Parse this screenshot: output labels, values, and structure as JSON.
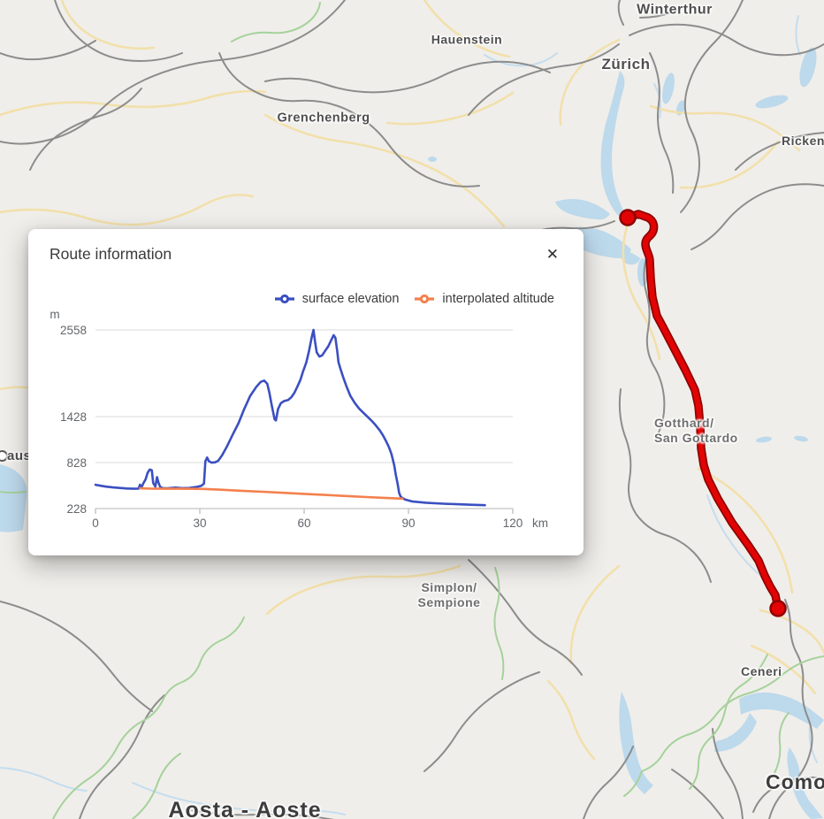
{
  "panel": {
    "title": "Route information",
    "close": "✕"
  },
  "chart_data": {
    "type": "line",
    "title": "Route information",
    "xlabel": "km",
    "ylabel": "m",
    "xlim": [
      0,
      120
    ],
    "ylim": [
      228,
      2558
    ],
    "x_ticks": [
      0,
      30,
      60,
      90,
      120
    ],
    "y_ticks": [
      228,
      828,
      1428,
      2558
    ],
    "grid": "horizontal-only",
    "legend_position": "top-right",
    "series": [
      {
        "name": "surface elevation",
        "color": "#3b4fc1",
        "points": [
          [
            0,
            538
          ],
          [
            1.5,
            526
          ],
          [
            3,
            514
          ],
          [
            5,
            504
          ],
          [
            7,
            497
          ],
          [
            9,
            490
          ],
          [
            11,
            486
          ],
          [
            12.4,
            488
          ],
          [
            12.8,
            540
          ],
          [
            13.2,
            498
          ],
          [
            13.7,
            552
          ],
          [
            14.4,
            607
          ],
          [
            15,
            695
          ],
          [
            15.6,
            737
          ],
          [
            16.2,
            728
          ],
          [
            16.6,
            560
          ],
          [
            17.2,
            514
          ],
          [
            17.7,
            638
          ],
          [
            18.1,
            568
          ],
          [
            18.6,
            508
          ],
          [
            19.5,
            492
          ],
          [
            21,
            495
          ],
          [
            23,
            501
          ],
          [
            25,
            494
          ],
          [
            27,
            497
          ],
          [
            29,
            509
          ],
          [
            30.4,
            524
          ],
          [
            31.2,
            552
          ],
          [
            31.6,
            845
          ],
          [
            32.1,
            893
          ],
          [
            32.6,
            846
          ],
          [
            33.4,
            827
          ],
          [
            34.4,
            831
          ],
          [
            35.3,
            851
          ],
          [
            36.4,
            922
          ],
          [
            37.8,
            1038
          ],
          [
            39.4,
            1188
          ],
          [
            41.1,
            1340
          ],
          [
            42.8,
            1528
          ],
          [
            44.5,
            1697
          ],
          [
            46.2,
            1812
          ],
          [
            47.5,
            1880
          ],
          [
            48.5,
            1897
          ],
          [
            49.4,
            1856
          ],
          [
            50,
            1738
          ],
          [
            50.7,
            1572
          ],
          [
            51.5,
            1392
          ],
          [
            51.9,
            1378
          ],
          [
            52.5,
            1527
          ],
          [
            53.3,
            1602
          ],
          [
            54.2,
            1629
          ],
          [
            55.4,
            1643
          ],
          [
            56.3,
            1679
          ],
          [
            57.2,
            1738
          ],
          [
            58,
            1812
          ],
          [
            58.9,
            1904
          ],
          [
            59.7,
            2017
          ],
          [
            60.6,
            2132
          ],
          [
            61.4,
            2282
          ],
          [
            62.2,
            2468
          ],
          [
            62.7,
            2558
          ],
          [
            63.1,
            2416
          ],
          [
            63.6,
            2266
          ],
          [
            64.4,
            2210
          ],
          [
            65.2,
            2227
          ],
          [
            66,
            2282
          ],
          [
            66.9,
            2340
          ],
          [
            67.7,
            2416
          ],
          [
            68.5,
            2489
          ],
          [
            69,
            2453
          ],
          [
            69.5,
            2283
          ],
          [
            69.9,
            2133
          ],
          [
            70.4,
            2057
          ],
          [
            71.2,
            1943
          ],
          [
            72.1,
            1830
          ],
          [
            73.3,
            1698
          ],
          [
            74.6,
            1603
          ],
          [
            75.9,
            1528
          ],
          [
            77.6,
            1453
          ],
          [
            79.3,
            1378
          ],
          [
            80.5,
            1319
          ],
          [
            81.8,
            1245
          ],
          [
            82.6,
            1188
          ],
          [
            83.5,
            1113
          ],
          [
            84.3,
            1038
          ],
          [
            85.1,
            942
          ],
          [
            85.9,
            792
          ],
          [
            86.4,
            660
          ],
          [
            86.9,
            548
          ],
          [
            87.3,
            435
          ],
          [
            87.8,
            379
          ],
          [
            89,
            347
          ],
          [
            91,
            321
          ],
          [
            95,
            304
          ],
          [
            100,
            291
          ],
          [
            104,
            284
          ],
          [
            108,
            278
          ],
          [
            112,
            272
          ]
        ]
      },
      {
        "name": "interpolated altitude",
        "color": "#f4804d",
        "points": [
          [
            12.8,
            492
          ],
          [
            16,
            488
          ],
          [
            20,
            486
          ],
          [
            25,
            486
          ],
          [
            31,
            484
          ],
          [
            36,
            474
          ],
          [
            42,
            460
          ],
          [
            48,
            447
          ],
          [
            54,
            433
          ],
          [
            60,
            419
          ],
          [
            66,
            406
          ],
          [
            72,
            392
          ],
          [
            78,
            378
          ],
          [
            83,
            368
          ],
          [
            88.3,
            357
          ]
        ]
      }
    ]
  },
  "map": {
    "route_color": "#e20404",
    "route_casing_color": "#8e0000",
    "labels": [
      {
        "id": "winterthur",
        "text": "Winterthur"
      },
      {
        "id": "zurich",
        "text": "Zürich"
      },
      {
        "id": "hauenstein",
        "text": "Hauenstein"
      },
      {
        "id": "ricken",
        "text": "Ricken"
      },
      {
        "id": "grenchenberg",
        "text": "Grenchenberg"
      },
      {
        "id": "gotthard",
        "text": "Gotthard/\nSan Gottardo"
      },
      {
        "id": "simplon",
        "text": "Simplon/\nSempione"
      },
      {
        "id": "ceneri",
        "text": "Ceneri"
      },
      {
        "id": "como",
        "text": "Como"
      },
      {
        "id": "aosta",
        "text": "Aosta - Aoste"
      },
      {
        "id": "lausanne-partial",
        "text": "aus"
      }
    ]
  }
}
